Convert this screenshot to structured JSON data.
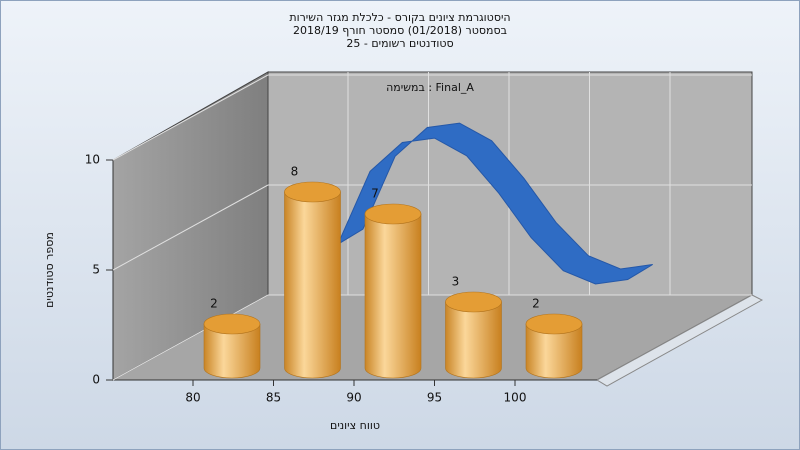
{
  "chart_data": {
    "type": "bar",
    "title": [
      "היסטוגרמת ציונים בקורס - כלכלת מגזר השירות",
      "בסמסטר  (01/2018)  סמסטר חורף 2018/19",
      "סטודנטים רשומים - 25"
    ],
    "annotation": "במשימה : Final_A",
    "x_label": "טווח ציונים",
    "y_label": "מספר סטודנטים",
    "categories": [
      80,
      85,
      90,
      95,
      100
    ],
    "values": [
      2,
      8,
      7,
      3,
      2
    ],
    "color": "#e8a23c",
    "curve": {
      "color": "#2f6cc4",
      "x": [
        89,
        91,
        93,
        95,
        97,
        99,
        101,
        103,
        105,
        107
      ],
      "values": [
        4.2,
        7.5,
        8.8,
        9.0,
        8.2,
        6.5,
        4.5,
        3.0,
        2.4,
        2.6
      ]
    },
    "ylim": [
      0,
      10
    ],
    "yticks": [
      0,
      5,
      10
    ],
    "grid": true
  }
}
